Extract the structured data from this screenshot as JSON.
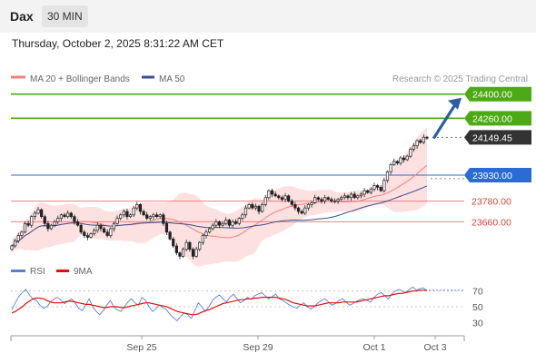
{
  "header": {
    "title": "Dax",
    "interval": "30 MIN",
    "datetime": "Thursday, October 2, 2025 8:31:22 AM CET"
  },
  "legend": {
    "items": [
      {
        "label": "MA 20 + Bollinger Bands",
        "color": "#f08080"
      },
      {
        "label": "MA 50",
        "color": "#3a4f8f"
      }
    ],
    "credit": "Research © 2025 Trading Central"
  },
  "rsi_legend": {
    "items": [
      {
        "label": "RSI",
        "color": "#5a7fd6"
      },
      {
        "label": "9MA",
        "color": "#e01010"
      }
    ]
  },
  "colors": {
    "resistance": "#4caa14",
    "pivot": "#2a6bd6",
    "support": "#f08080",
    "last_price_bg": "#333333",
    "arrow": "#2a5fa8",
    "up_candle": "#ffffff",
    "down_candle": "#222222",
    "band_fill": "#fde0e0"
  },
  "chart_data": [
    {
      "type": "candlestick",
      "ylim": [
        23420,
        24430
      ],
      "x_ticks": [
        "Sep 25",
        "Sep 29",
        "Oct 1",
        "Oct 3"
      ],
      "levels": [
        {
          "value": 24400,
          "label": "24400.00",
          "kind": "resistance"
        },
        {
          "value": 24260,
          "label": "24260.00",
          "kind": "resistance"
        },
        {
          "value": 24149.45,
          "label": "24149.45",
          "kind": "last"
        },
        {
          "value": 23930,
          "label": "23930.00",
          "kind": "pivot"
        },
        {
          "value": 23780,
          "label": "23780.00",
          "kind": "support"
        },
        {
          "value": 23660,
          "label": "23660.00",
          "kind": "support"
        }
      ],
      "close": [
        23520,
        23550,
        23580,
        23600,
        23650,
        23640,
        23690,
        23710,
        23730,
        23690,
        23650,
        23620,
        23640,
        23660,
        23680,
        23700,
        23690,
        23710,
        23690,
        23660,
        23640,
        23600,
        23580,
        23570,
        23590,
        23610,
        23640,
        23620,
        23600,
        23580,
        23620,
        23650,
        23680,
        23700,
        23720,
        23690,
        23700,
        23740,
        23760,
        23720,
        23700,
        23680,
        23690,
        23700,
        23690,
        23700,
        23650,
        23600,
        23560,
        23520,
        23480,
        23460,
        23500,
        23540,
        23500,
        23460,
        23500,
        23540,
        23580,
        23600,
        23620,
        23640,
        23660,
        23640,
        23650,
        23670,
        23640,
        23660,
        23650,
        23680,
        23700,
        23740,
        23760,
        23740,
        23750,
        23720,
        23760,
        23800,
        23840,
        23820,
        23810,
        23800,
        23790,
        23810,
        23780,
        23760,
        23740,
        23720,
        23710,
        23740,
        23760,
        23770,
        23800,
        23790,
        23780,
        23800,
        23790,
        23780,
        23780,
        23790,
        23800,
        23810,
        23800,
        23820,
        23800,
        23810,
        23820,
        23840,
        23830,
        23850,
        23870,
        23860,
        23840,
        23900,
        23950,
        23990,
        24010,
        24000,
        24030,
        24020,
        24040,
        24080,
        24100,
        24130,
        24120,
        24150,
        24149.45
      ]
    },
    {
      "type": "line",
      "title": "RSI",
      "ylim": [
        20,
        80
      ],
      "y_ticks": [
        70,
        50,
        30
      ],
      "series": [
        {
          "name": "RSI",
          "values": [
            46,
            55,
            63,
            68,
            72,
            65,
            60,
            58,
            52,
            48,
            50,
            56,
            60,
            62,
            58,
            54,
            57,
            60,
            55,
            48,
            45,
            52,
            60,
            50,
            44,
            40,
            45,
            52,
            58,
            50,
            46,
            44,
            50,
            56,
            60,
            55,
            52,
            62,
            58,
            50,
            44,
            48,
            52,
            49,
            46,
            40,
            36,
            32,
            38,
            42,
            40,
            35,
            45,
            55,
            50,
            44,
            50,
            58,
            62,
            65,
            60,
            56,
            62,
            66,
            60,
            55,
            58,
            62,
            59,
            64,
            66,
            68,
            64,
            60,
            63,
            66,
            60,
            58,
            55,
            52,
            50,
            48,
            52,
            55,
            50,
            47,
            50,
            55,
            58,
            60,
            56,
            52,
            54,
            58,
            60,
            56,
            52,
            54,
            57,
            59,
            60,
            58,
            56,
            62,
            66,
            68,
            64,
            60,
            66,
            70,
            72,
            70,
            68,
            72,
            75,
            71,
            73,
            74,
            70
          ]
        },
        {
          "name": "9MA",
          "values": [
            42,
            44,
            47,
            50,
            54,
            57,
            60,
            61,
            61,
            60,
            58,
            56,
            55,
            55,
            55,
            56,
            57,
            57,
            56,
            55,
            54,
            53,
            53,
            52,
            51,
            50,
            49,
            49,
            50,
            50,
            50,
            49,
            49,
            50,
            51,
            52,
            53,
            54,
            55,
            55,
            54,
            53,
            52,
            51,
            50,
            48,
            46,
            44,
            43,
            42,
            41,
            40,
            40,
            41,
            43,
            45,
            46,
            48,
            50,
            52,
            54,
            55,
            56,
            57,
            58,
            59,
            59,
            60,
            60,
            61,
            61,
            62,
            62,
            62,
            62,
            62,
            61,
            60,
            59,
            57,
            55,
            54,
            53,
            52,
            51,
            51,
            51,
            52,
            53,
            54,
            55,
            55,
            55,
            55,
            56,
            56,
            56,
            56,
            56,
            57,
            58,
            59,
            60,
            61,
            62,
            63,
            64,
            64,
            65,
            66,
            67,
            67,
            68,
            69,
            70,
            70,
            71,
            71,
            71
          ]
        }
      ]
    }
  ]
}
